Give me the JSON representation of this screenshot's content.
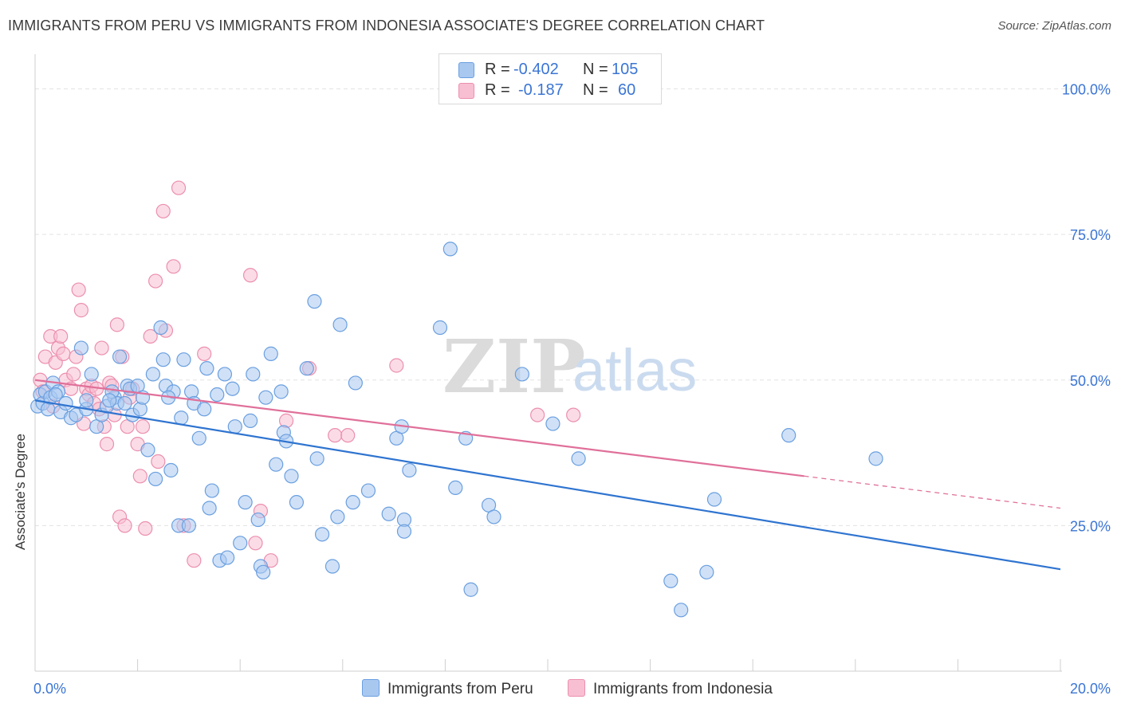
{
  "title": "IMMIGRANTS FROM PERU VS IMMIGRANTS FROM INDONESIA ASSOCIATE'S DEGREE CORRELATION CHART",
  "source": "Source: ZipAtlas.com",
  "watermark": {
    "zip": "ZIP",
    "atlas": "atlas"
  },
  "colors": {
    "peru_fill": "#a9c8f0",
    "peru_stroke": "#6a9fe0",
    "peru_line": "#2f74d0",
    "indonesia_fill": "#f8bfd2",
    "indonesia_stroke": "#ec8fae",
    "indonesia_line": "#e0709a",
    "axis_text": "#3b75d4",
    "grid": "#e3e3e3"
  },
  "legend": {
    "rows": [
      {
        "r_label": "R =",
        "r_value": "-0.402",
        "n_label": "N =",
        "n_value": "105"
      },
      {
        "r_label": "R =",
        "r_value": "-0.187",
        "n_label": "N =",
        "n_value": "60"
      }
    ]
  },
  "bottom_legend": [
    "Immigrants from Peru",
    "Immigrants from Indonesia"
  ],
  "chart_data": {
    "type": "scatter",
    "ylabel": "Associate's Degree",
    "xlim": [
      0,
      20
    ],
    "ylim": [
      0,
      105
    ],
    "x_tick_labels": [
      {
        "value": 0,
        "label": "0.0%"
      },
      {
        "value": 20,
        "label": "20.0%"
      }
    ],
    "y_tick_labels": [
      {
        "value": 25,
        "label": "25.0%"
      },
      {
        "value": 50,
        "label": "50.0%"
      },
      {
        "value": 75,
        "label": "75.0%"
      },
      {
        "value": 100,
        "label": "100.0%"
      }
    ],
    "grid": true,
    "legend_position": "top-center",
    "series": [
      {
        "name": "Immigrants from Peru",
        "trend": {
          "x": [
            0,
            20
          ],
          "y": [
            46.5,
            17.5
          ],
          "style": "solid"
        },
        "points": [
          [
            0.05,
            45.5
          ],
          [
            0.1,
            47.5
          ],
          [
            0.15,
            46
          ],
          [
            0.2,
            48
          ],
          [
            0.25,
            45
          ],
          [
            0.3,
            47
          ],
          [
            0.35,
            49.5
          ],
          [
            0.45,
            48
          ],
          [
            0.5,
            44.5
          ],
          [
            0.6,
            46
          ],
          [
            0.7,
            43.5
          ],
          [
            0.8,
            44
          ],
          [
            0.9,
            55.5
          ],
          [
            1.0,
            45
          ],
          [
            1.1,
            51
          ],
          [
            1.2,
            42
          ],
          [
            1.3,
            44
          ],
          [
            1.4,
            45.5
          ],
          [
            1.55,
            47
          ],
          [
            1.6,
            46
          ],
          [
            1.65,
            54
          ],
          [
            1.75,
            46
          ],
          [
            1.8,
            49
          ],
          [
            1.85,
            48.5
          ],
          [
            1.9,
            44
          ],
          [
            2.0,
            49
          ],
          [
            2.05,
            45
          ],
          [
            2.1,
            47
          ],
          [
            2.2,
            38
          ],
          [
            2.3,
            51
          ],
          [
            2.35,
            33
          ],
          [
            2.45,
            59
          ],
          [
            2.5,
            53.5
          ],
          [
            2.55,
            49
          ],
          [
            2.65,
            34.5
          ],
          [
            2.7,
            48
          ],
          [
            2.8,
            25
          ],
          [
            2.85,
            43.5
          ],
          [
            2.9,
            53.5
          ],
          [
            3.0,
            25
          ],
          [
            3.05,
            48
          ],
          [
            3.1,
            46
          ],
          [
            3.2,
            40
          ],
          [
            3.3,
            45
          ],
          [
            3.35,
            52
          ],
          [
            3.4,
            28
          ],
          [
            3.45,
            31
          ],
          [
            3.55,
            47.5
          ],
          [
            3.6,
            19
          ],
          [
            3.7,
            51
          ],
          [
            3.75,
            19.5
          ],
          [
            3.85,
            48.5
          ],
          [
            3.9,
            42
          ],
          [
            4.0,
            22
          ],
          [
            4.1,
            29
          ],
          [
            4.2,
            43
          ],
          [
            4.25,
            51
          ],
          [
            4.35,
            26
          ],
          [
            4.4,
            18
          ],
          [
            4.45,
            17
          ],
          [
            4.5,
            47
          ],
          [
            4.6,
            54.5
          ],
          [
            4.7,
            35.5
          ],
          [
            4.8,
            48
          ],
          [
            4.85,
            41
          ],
          [
            4.9,
            39.5
          ],
          [
            5.0,
            33.5
          ],
          [
            5.1,
            29
          ],
          [
            5.3,
            52
          ],
          [
            5.45,
            63.5
          ],
          [
            5.5,
            36.5
          ],
          [
            5.6,
            23.5
          ],
          [
            5.8,
            18
          ],
          [
            5.9,
            26.5
          ],
          [
            5.95,
            59.5
          ],
          [
            6.2,
            29
          ],
          [
            6.25,
            49.5
          ],
          [
            6.5,
            31
          ],
          [
            6.9,
            27
          ],
          [
            7.05,
            40
          ],
          [
            7.15,
            42
          ],
          [
            7.2,
            26
          ],
          [
            7.2,
            24
          ],
          [
            7.3,
            34.5
          ],
          [
            7.9,
            59
          ],
          [
            8.1,
            72.5
          ],
          [
            8.2,
            31.5
          ],
          [
            8.4,
            40
          ],
          [
            8.5,
            14
          ],
          [
            8.85,
            28.5
          ],
          [
            8.95,
            26.5
          ],
          [
            9.5,
            51
          ],
          [
            10.1,
            42.5
          ],
          [
            10.6,
            36.5
          ],
          [
            12.4,
            15.5
          ],
          [
            12.6,
            10.5
          ],
          [
            13.1,
            17
          ],
          [
            13.25,
            29.5
          ],
          [
            14.7,
            40.5
          ],
          [
            16.4,
            36.5
          ],
          [
            1.0,
            46.5
          ],
          [
            1.5,
            48
          ],
          [
            2.6,
            47
          ],
          [
            0.4,
            47.5
          ],
          [
            1.45,
            46.5
          ]
        ]
      },
      {
        "name": "Immigrants from Indonesia",
        "trend": {
          "x": [
            0,
            15
          ],
          "y": [
            50,
            33.5
          ],
          "style": "solid",
          "dashed_to": {
            "x": 20,
            "y": 28
          }
        },
        "points": [
          [
            0.1,
            50
          ],
          [
            0.15,
            48
          ],
          [
            0.2,
            54
          ],
          [
            0.3,
            57.5
          ],
          [
            0.35,
            45.5
          ],
          [
            0.4,
            53
          ],
          [
            0.45,
            55.5
          ],
          [
            0.5,
            57.5
          ],
          [
            0.55,
            54.5
          ],
          [
            0.6,
            50
          ],
          [
            0.7,
            48.5
          ],
          [
            0.75,
            51
          ],
          [
            0.8,
            54
          ],
          [
            0.85,
            65.5
          ],
          [
            0.9,
            62
          ],
          [
            0.95,
            42.5
          ],
          [
            1.0,
            48.5
          ],
          [
            1.05,
            47.5
          ],
          [
            1.1,
            49
          ],
          [
            1.15,
            46
          ],
          [
            1.2,
            48.5
          ],
          [
            1.25,
            45
          ],
          [
            1.3,
            55.5
          ],
          [
            1.35,
            42
          ],
          [
            1.4,
            39
          ],
          [
            1.45,
            49.5
          ],
          [
            1.5,
            49
          ],
          [
            1.55,
            44
          ],
          [
            1.6,
            59.5
          ],
          [
            1.65,
            26.5
          ],
          [
            1.7,
            54
          ],
          [
            1.75,
            25
          ],
          [
            1.8,
            42
          ],
          [
            1.85,
            47
          ],
          [
            1.9,
            48.5
          ],
          [
            2.0,
            39
          ],
          [
            2.05,
            33.5
          ],
          [
            2.1,
            42
          ],
          [
            2.15,
            24.5
          ],
          [
            2.25,
            57.5
          ],
          [
            2.35,
            67
          ],
          [
            2.4,
            36
          ],
          [
            2.5,
            79
          ],
          [
            2.55,
            58.5
          ],
          [
            2.7,
            69.5
          ],
          [
            2.8,
            83
          ],
          [
            2.9,
            25
          ],
          [
            3.1,
            19
          ],
          [
            3.3,
            54.5
          ],
          [
            4.2,
            68
          ],
          [
            4.3,
            22
          ],
          [
            4.4,
            27.5
          ],
          [
            4.6,
            19
          ],
          [
            4.9,
            43
          ],
          [
            5.35,
            52
          ],
          [
            5.85,
            40.5
          ],
          [
            6.1,
            40.5
          ],
          [
            7.05,
            52.5
          ],
          [
            9.8,
            44
          ],
          [
            10.5,
            44
          ]
        ]
      }
    ]
  }
}
